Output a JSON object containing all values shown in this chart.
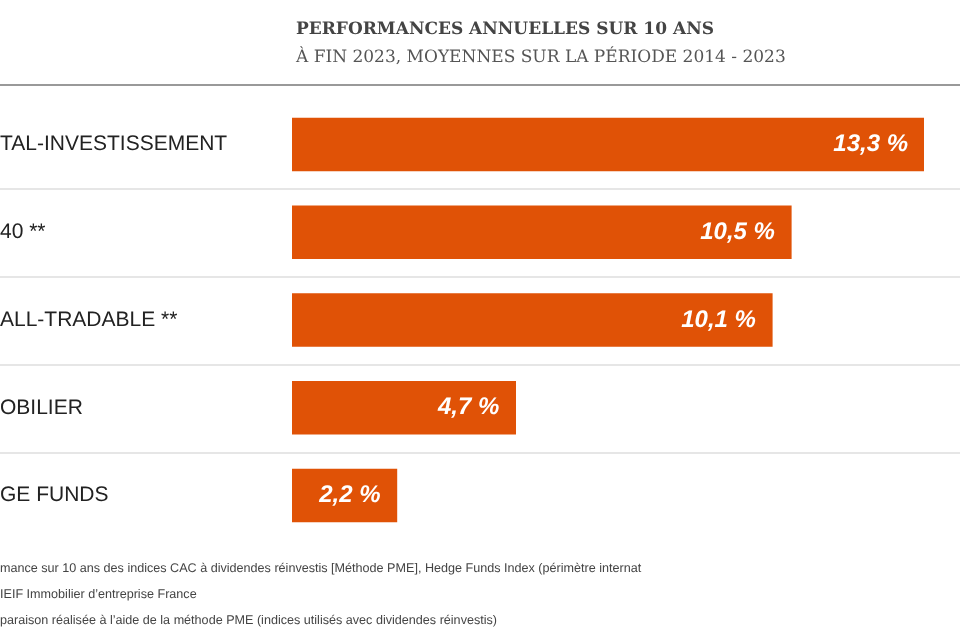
{
  "chart_data": {
    "type": "bar",
    "orientation": "horizontal",
    "title": "PERFORMANCES ANNUELLES SUR 10 ANS",
    "subtitle": "À FIN 2023,  MOYENNES SUR LA PÉRIODE 2014 - 2023",
    "categories": [
      "TAL-INVESTISSEMENT",
      "40 **",
      "ALL-TRADABLE **",
      "OBILIER",
      "GE FUNDS"
    ],
    "values": [
      13.3,
      10.5,
      10.1,
      4.7,
      2.2
    ],
    "value_labels": [
      "13,3 %",
      "10,5 %",
      "10,1 %",
      "4,7 %",
      "2,2 %"
    ],
    "color": "#e05206",
    "annotations": [
      "mance sur 10 ans des indices CAC à dividendes réinvestis [Méthode PME], Hedge Funds Index (périmètre internat",
      "IEIF Immobilier d’entreprise France",
      "paraison réalisée à l’aide de la méthode PME (indices utilisés avec dividendes réinvestis)"
    ]
  }
}
